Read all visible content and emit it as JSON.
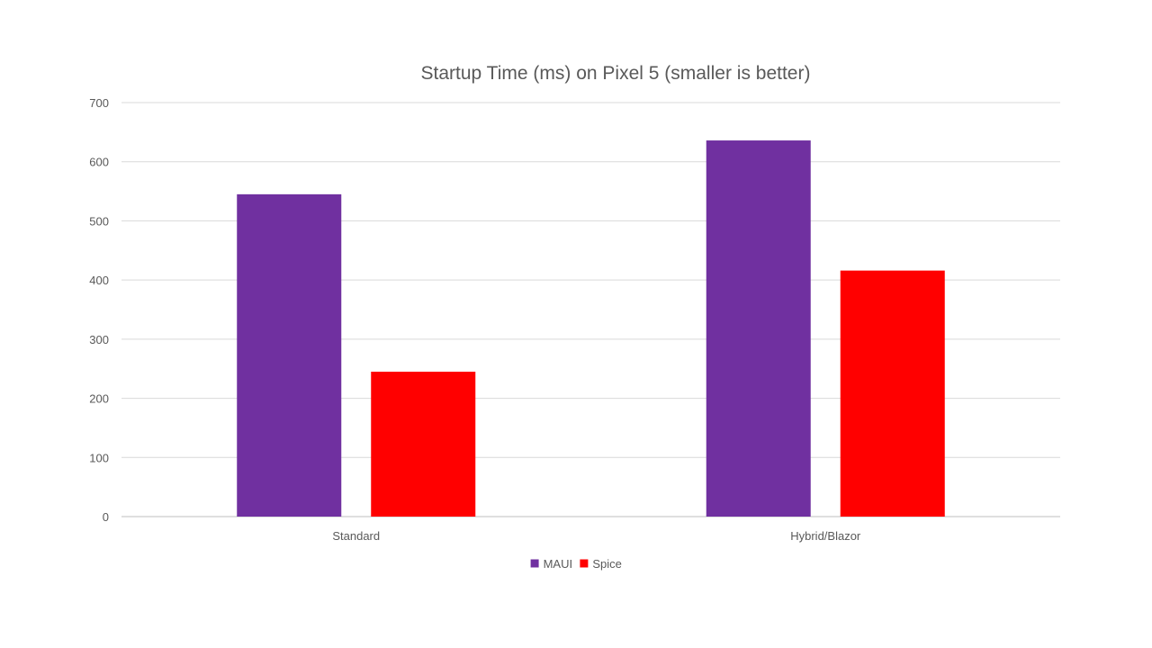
{
  "chart_data": {
    "type": "bar",
    "title": "Startup Time (ms) on Pixel 5 (smaller is better)",
    "xlabel": "",
    "ylabel": "",
    "categories": [
      "Standard",
      "Hybrid/Blazor"
    ],
    "series": [
      {
        "name": "MAUI",
        "values": [
          545,
          636
        ],
        "color": "#7030A0"
      },
      {
        "name": "Spice",
        "values": [
          245,
          416
        ],
        "color": "#FF0000"
      }
    ],
    "ylim": [
      0,
      700
    ],
    "yticks": [
      "0",
      "100",
      "200",
      "300",
      "400",
      "500",
      "600",
      "700"
    ],
    "grid": true,
    "legend_position": "bottom"
  }
}
